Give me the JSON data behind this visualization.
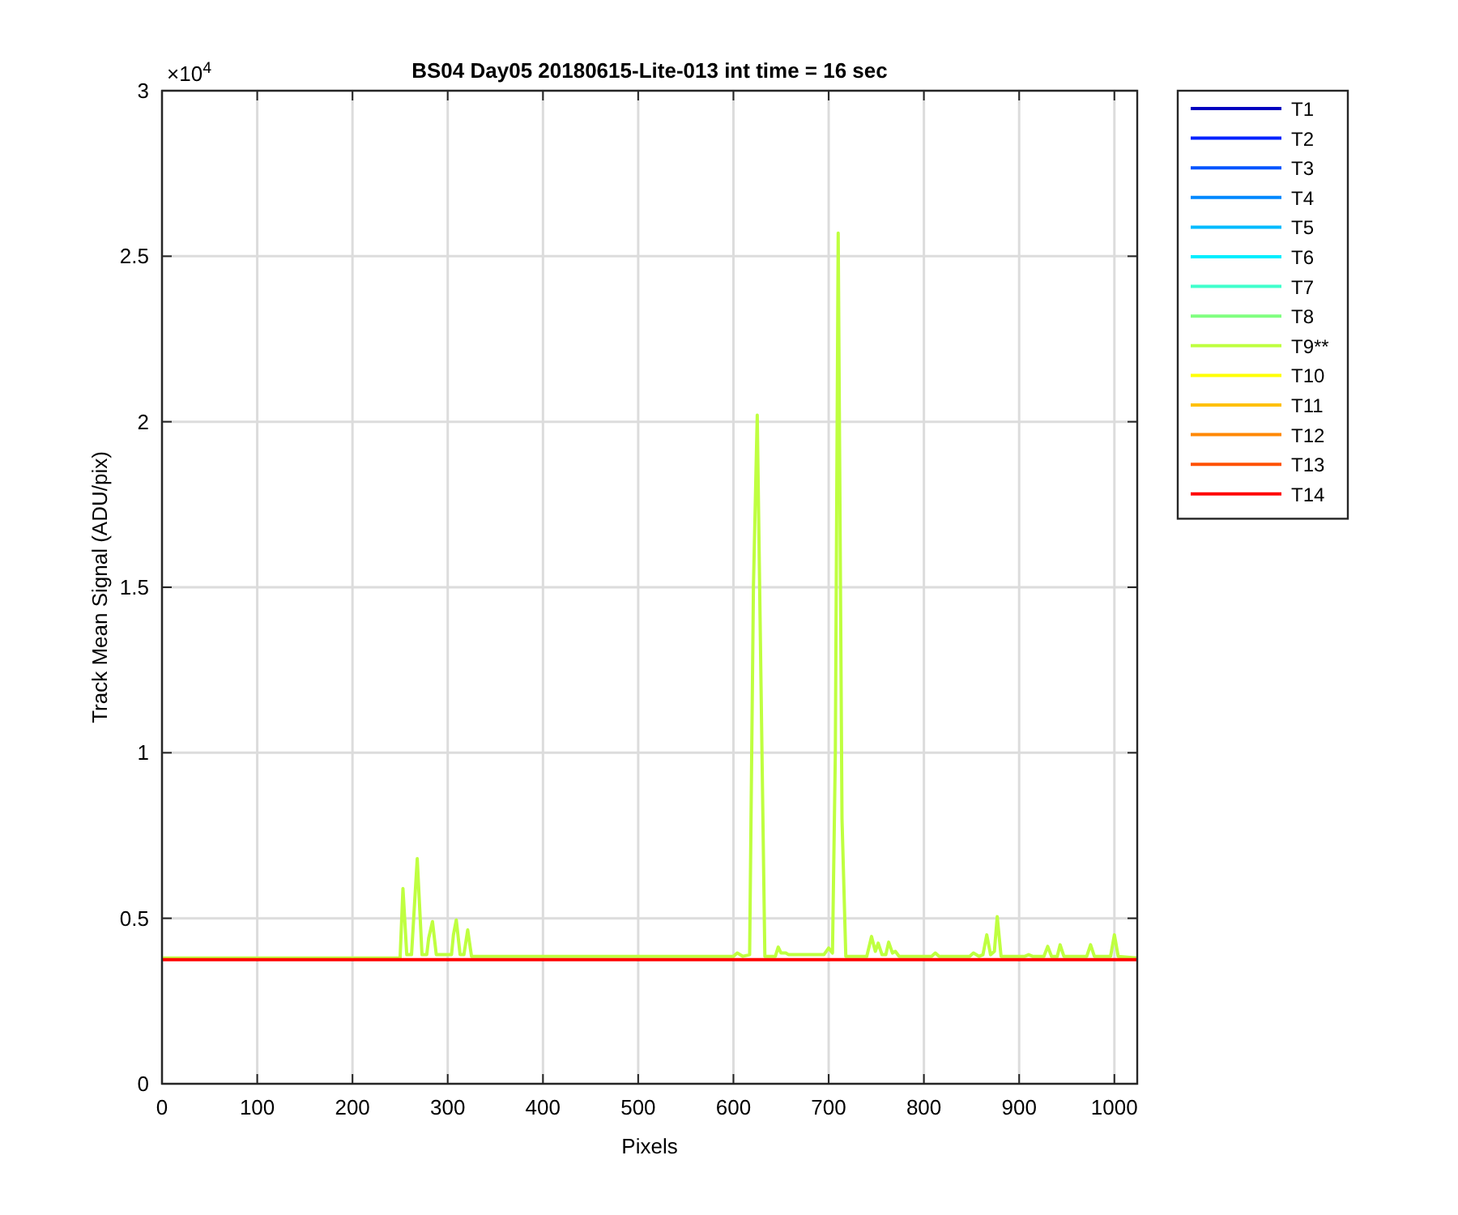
{
  "chart_data": {
    "type": "line",
    "title": "BS04 Day05 20180615-Lite-013 int time = 16 sec",
    "xlabel": "Pixels",
    "ylabel": "Track Mean Signal (ADU/pix)",
    "annotations": [
      "×10$^{4}$"
    ],
    "xlim": [
      0,
      1024
    ],
    "xticks": [
      0,
      100,
      200,
      300,
      400,
      500,
      600,
      700,
      800,
      900,
      1000
    ],
    "ylim": [
      0,
      3
    ],
    "yticks": [
      0,
      0.5,
      1,
      1.5,
      2,
      2.5,
      3
    ],
    "grid": true,
    "legend": "top right",
    "line_style": "solid",
    "marker": "none",
    "series": [
      {
        "name": "T1",
        "color": "#0000bf"
      },
      {
        "name": "T2",
        "color": "#0022ff"
      },
      {
        "name": "T3",
        "color": "#0055ff"
      },
      {
        "name": "T4",
        "color": "#0088ff"
      },
      {
        "name": "T5",
        "color": "#00bbff"
      },
      {
        "name": "T6",
        "color": "#00eeff"
      },
      {
        "name": "T7",
        "color": "#40ffcc"
      },
      {
        "name": "T8",
        "color": "#80ff80"
      },
      {
        "name": "T9**",
        "color": "#bfff40",
        "x": [
          0,
          250,
          253,
          257,
          262,
          268,
          273,
          278,
          280,
          284,
          288,
          304,
          306,
          309,
          313,
          317,
          321,
          325,
          600,
          604,
          610,
          617,
          621,
          625,
          629,
          633,
          644,
          647,
          650,
          655,
          658,
          695,
          700,
          704,
          707,
          710,
          714,
          718,
          740,
          745,
          749,
          752,
          756,
          760,
          763,
          767,
          770,
          774,
          808,
          812,
          816,
          848,
          852,
          858,
          862,
          866,
          870,
          874,
          877,
          881,
          906,
          910,
          914,
          926,
          930,
          934,
          940,
          943,
          947,
          971,
          975,
          979,
          996,
          1000,
          1004,
          1024
        ],
        "values": [
          0.38,
          0.38,
          0.59,
          0.39,
          0.39,
          0.68,
          0.39,
          0.39,
          0.44,
          0.49,
          0.39,
          0.39,
          0.45,
          0.495,
          0.39,
          0.39,
          0.465,
          0.385,
          0.385,
          0.395,
          0.385,
          0.39,
          1.5,
          2.02,
          1.2,
          0.385,
          0.385,
          0.413,
          0.395,
          0.395,
          0.39,
          0.39,
          0.41,
          0.395,
          1.0,
          2.57,
          0.8,
          0.385,
          0.385,
          0.445,
          0.4,
          0.425,
          0.39,
          0.39,
          0.428,
          0.395,
          0.4,
          0.385,
          0.385,
          0.395,
          0.385,
          0.385,
          0.395,
          0.385,
          0.39,
          0.45,
          0.39,
          0.4,
          0.505,
          0.385,
          0.385,
          0.39,
          0.385,
          0.385,
          0.415,
          0.385,
          0.385,
          0.42,
          0.385,
          0.385,
          0.42,
          0.385,
          0.385,
          0.45,
          0.385,
          0.38
        ]
      },
      {
        "name": "T10",
        "color": "#ffff00"
      },
      {
        "name": "T11",
        "color": "#ffc000"
      },
      {
        "name": "T12",
        "color": "#ff8800"
      },
      {
        "name": "T13",
        "color": "#ff5000"
      },
      {
        "name": "T14",
        "color": "#ff0000",
        "x": [
          0,
          1024
        ],
        "values": [
          0.375,
          0.375
        ]
      }
    ]
  }
}
